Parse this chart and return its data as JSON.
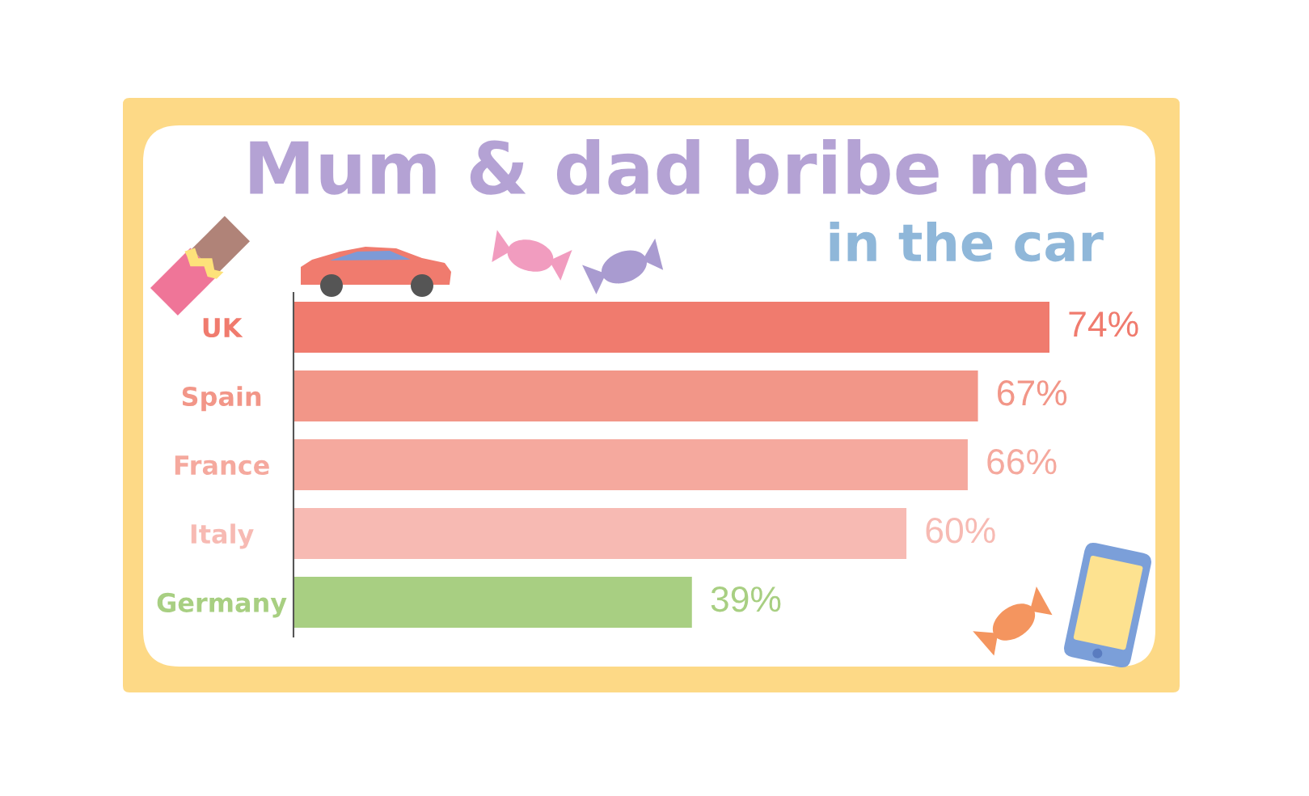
{
  "chart_data": {
    "type": "bar",
    "orientation": "horizontal",
    "title": "Mum & dad bribe me",
    "subtitle": "in the car",
    "categories": [
      "UK",
      "Spain",
      "France",
      "Italy",
      "Germany"
    ],
    "values": [
      74,
      67,
      66,
      60,
      39
    ],
    "colors": [
      "#f07b6e",
      "#f29688",
      "#f5a99e",
      "#f7bab3",
      "#a8cf82"
    ],
    "value_labels": [
      "74%",
      "67%",
      "66%",
      "60%",
      "39%"
    ],
    "tick_labels": "y"
  }
}
